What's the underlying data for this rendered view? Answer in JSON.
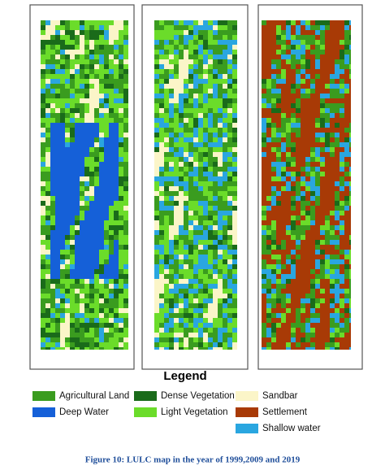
{
  "legend": {
    "title": "Legend",
    "items": [
      {
        "label": "Agricultural Land",
        "color": "#3a9c1f"
      },
      {
        "label": "Deep Water",
        "color": "#1560d8"
      },
      {
        "label": "Dense Vegetation",
        "color": "#1a6b1a"
      },
      {
        "label": "Light Vegetation",
        "color": "#6bdc2a"
      },
      {
        "label": "Sandbar",
        "color": "#fbf5c8"
      },
      {
        "label": "Settlement",
        "color": "#a83a06"
      },
      {
        "label": "Shallow water",
        "color": "#2aa6e0"
      }
    ]
  },
  "caption": "Figure 10: LULC map in the year of 1999,2009 and 2019"
}
